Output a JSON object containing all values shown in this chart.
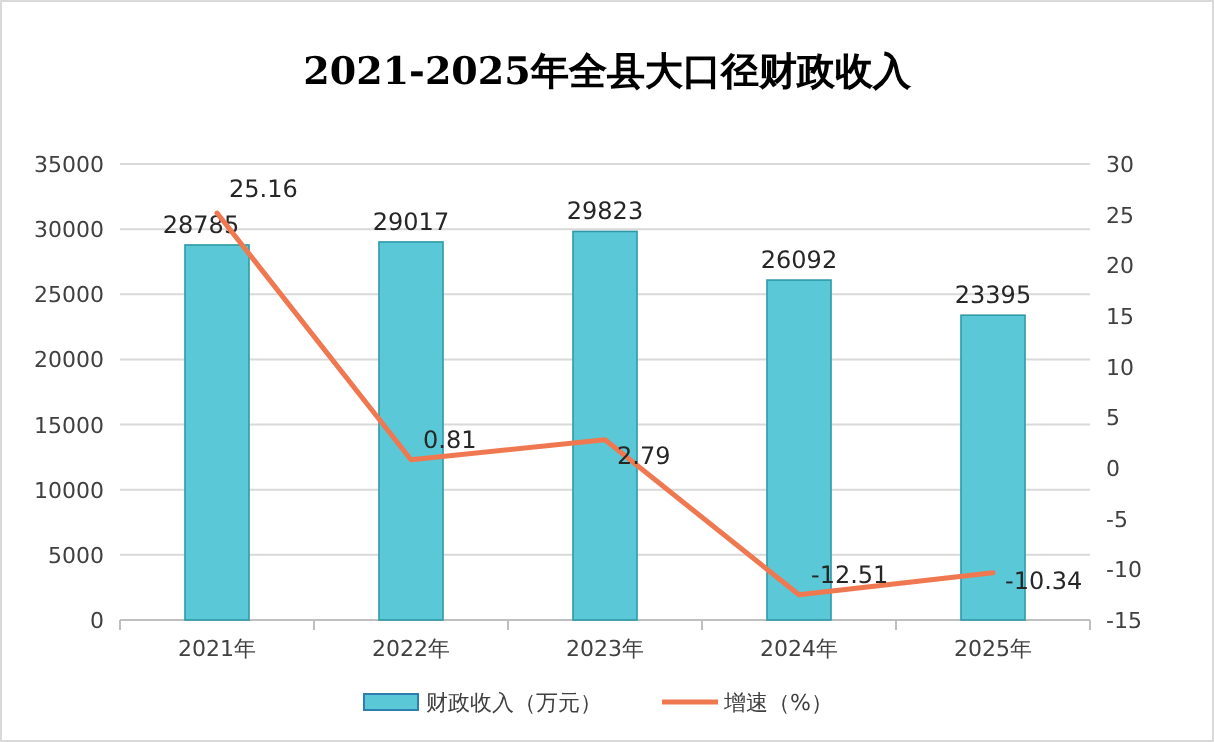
{
  "chart_data": {
    "type": "bar",
    "title": "2021-2025年全县大口径财政收入",
    "categories": [
      "2021年",
      "2022年",
      "2023年",
      "2024年",
      "2025年"
    ],
    "series": [
      {
        "name": "财政收入（万元）",
        "color": "#5ac8d6",
        "values": [
          28785,
          29017,
          29823,
          26092,
          23395
        ]
      },
      {
        "name": "增速（%）",
        "type": "line",
        "axis": "y2",
        "color": "#f07850",
        "values": [
          25.16,
          0.81,
          2.79,
          -12.51,
          -10.34
        ]
      }
    ],
    "ylim": [
      0,
      35000
    ],
    "yticks": [
      0,
      5000,
      10000,
      15000,
      20000,
      25000,
      30000,
      35000
    ],
    "y2lim": [
      -15,
      30
    ],
    "y2ticks": [
      -15,
      -10,
      -5,
      0,
      5,
      10,
      15,
      20,
      25,
      30
    ],
    "grid": "y",
    "legend": "bottom",
    "data_labels": true
  }
}
